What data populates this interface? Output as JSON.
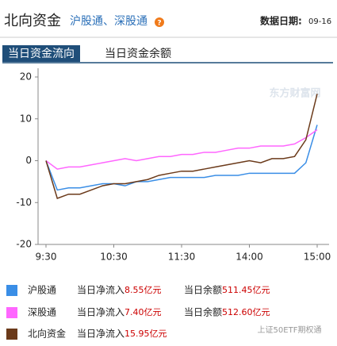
{
  "header": {
    "title": "北向资金",
    "subtitle": "沪股通、深股通",
    "date_label": "数据日期:",
    "date": "09-16"
  },
  "tabs": [
    "当日资金流向",
    "当日资金余额"
  ],
  "chart_data": {
    "type": "line",
    "categories": [
      "9:30",
      null,
      null,
      null,
      null,
      null,
      "10:30",
      null,
      null,
      null,
      null,
      null,
      "11:30",
      null,
      null,
      null,
      null,
      null,
      "14:00",
      null,
      null,
      null,
      null,
      null,
      "15:00"
    ],
    "series": [
      {
        "name": "沪股通",
        "color": "#3a8ee6",
        "values": [
          0,
          -7,
          -6.5,
          -6.5,
          -6,
          -5.5,
          -5.5,
          -6,
          -5,
          -5,
          -4.5,
          -4,
          -4,
          -4,
          -4,
          -3.5,
          -3.5,
          -3.5,
          -3,
          -3,
          -3,
          -3,
          -3,
          -0.5,
          8.55
        ]
      },
      {
        "name": "深股通",
        "color": "#ff66ff",
        "values": [
          0,
          -2,
          -1.5,
          -1.5,
          -1,
          -0.5,
          0,
          0.5,
          0,
          0.5,
          1,
          1,
          1.5,
          1.5,
          2,
          2,
          2.5,
          3,
          3,
          3.5,
          3.5,
          3.5,
          4,
          5.5,
          7.4
        ]
      },
      {
        "name": "北向资金",
        "color": "#6b3a1a",
        "values": [
          0,
          -9,
          -8,
          -8,
          -7,
          -6,
          -5.5,
          -5.5,
          -5,
          -4.5,
          -3.5,
          -3,
          -2.5,
          -2.5,
          -2,
          -1.5,
          -1,
          -0.5,
          0,
          -0.5,
          0.5,
          0.5,
          1,
          5,
          15.95
        ]
      }
    ],
    "ylim": [
      -20,
      20
    ],
    "yticks": [
      -20,
      -10,
      0,
      10,
      20
    ],
    "grid": false
  },
  "legend_rows": [
    {
      "flow_label": "当日净流入",
      "flow": "8.55亿元",
      "balance_label": "当日余额",
      "balance": "511.45亿元"
    },
    {
      "flow_label": "当日净流入",
      "flow": "7.40亿元",
      "balance_label": "当日余额",
      "balance": "512.60亿元"
    },
    {
      "flow_label": "当日净流入",
      "flow": "15.95亿元",
      "balance_label": "",
      "balance": ""
    }
  ],
  "watermarks": {
    "site": "东方财富网",
    "source": "上证50ETF期权通"
  }
}
